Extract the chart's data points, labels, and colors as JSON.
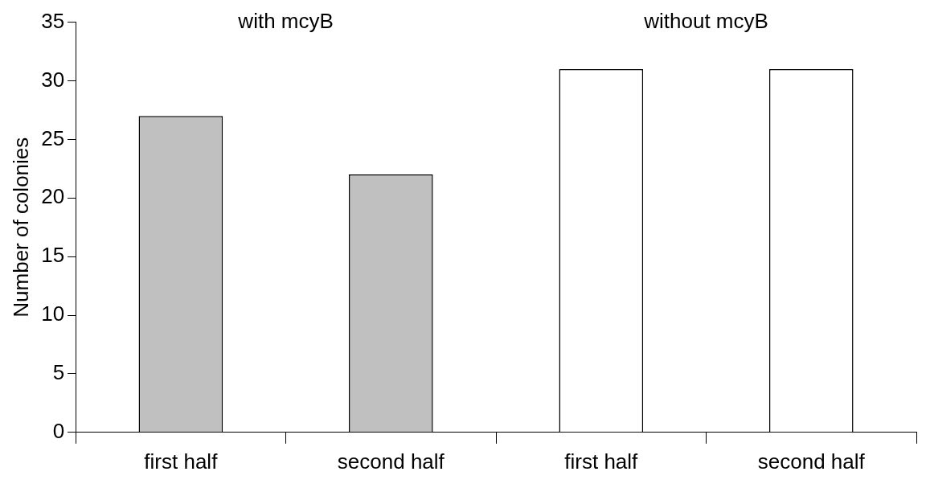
{
  "chart_data": {
    "type": "bar",
    "ylabel": "Number of colonies",
    "categories": [
      "first half",
      "second half",
      "first half",
      "second half"
    ],
    "values": [
      27,
      22,
      31,
      31
    ],
    "colors": [
      "#c0c0c0",
      "#c0c0c0",
      "#ffffff",
      "#ffffff"
    ],
    "ylim": [
      0,
      35
    ],
    "yticks": [
      0,
      5,
      10,
      15,
      20,
      25,
      30,
      35
    ],
    "grid": false,
    "legend": false,
    "annotations": [
      "with mcyB",
      "without mcyB"
    ]
  }
}
